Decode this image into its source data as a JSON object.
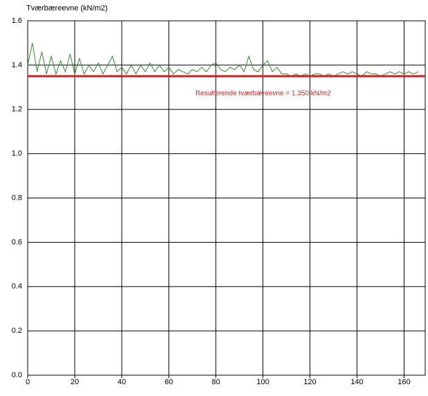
{
  "chart_data": {
    "type": "line",
    "ylabel": "Tværbæreevne (kN/m2)",
    "annotation": "Resulterende tværbæreevne = 1.350 kN/m2",
    "reference_line": {
      "value": 1.35,
      "color": "#d42020"
    },
    "x": [
      0,
      2,
      4,
      6,
      8,
      10,
      12,
      14,
      16,
      18,
      20,
      22,
      24,
      26,
      28,
      30,
      32,
      34,
      36,
      38,
      40,
      42,
      44,
      46,
      48,
      50,
      52,
      54,
      56,
      58,
      60,
      62,
      64,
      66,
      68,
      70,
      72,
      74,
      76,
      78,
      80,
      82,
      84,
      86,
      88,
      90,
      92,
      94,
      96,
      98,
      100,
      102,
      104,
      106,
      108,
      110,
      112,
      114,
      116,
      118,
      120,
      122,
      124,
      126,
      128,
      130,
      132,
      134,
      136,
      138,
      140,
      142,
      144,
      146,
      148,
      150,
      152,
      154,
      156,
      158,
      160,
      162,
      164,
      166
    ],
    "series": [
      {
        "color": "#2e8b2e",
        "values": [
          1.4,
          1.5,
          1.37,
          1.46,
          1.36,
          1.44,
          1.36,
          1.42,
          1.37,
          1.45,
          1.36,
          1.43,
          1.36,
          1.4,
          1.37,
          1.41,
          1.36,
          1.4,
          1.44,
          1.37,
          1.39,
          1.36,
          1.4,
          1.36,
          1.4,
          1.37,
          1.41,
          1.37,
          1.4,
          1.37,
          1.39,
          1.36,
          1.38,
          1.37,
          1.36,
          1.38,
          1.37,
          1.39,
          1.37,
          1.4,
          1.41,
          1.38,
          1.37,
          1.39,
          1.38,
          1.4,
          1.37,
          1.44,
          1.38,
          1.37,
          1.4,
          1.42,
          1.37,
          1.39,
          1.36,
          1.36,
          1.35,
          1.36,
          1.35,
          1.36,
          1.35,
          1.36,
          1.36,
          1.35,
          1.36,
          1.35,
          1.36,
          1.37,
          1.36,
          1.37,
          1.36,
          1.35,
          1.37,
          1.36,
          1.36,
          1.35,
          1.36,
          1.37,
          1.36,
          1.37,
          1.36,
          1.37,
          1.36,
          1.37
        ]
      }
    ],
    "xlim": [
      0,
      169
    ],
    "xticks": [
      0,
      20,
      40,
      60,
      80,
      100,
      120,
      140,
      160
    ],
    "ylim": [
      0,
      1.6
    ],
    "yticks": [
      {
        "value": 0,
        "label": "0.0"
      },
      0.2,
      0.4,
      0.6,
      0.8,
      {
        "value": 1,
        "label": "1.0"
      },
      1.2,
      1.4,
      1.6
    ],
    "grid": true
  }
}
